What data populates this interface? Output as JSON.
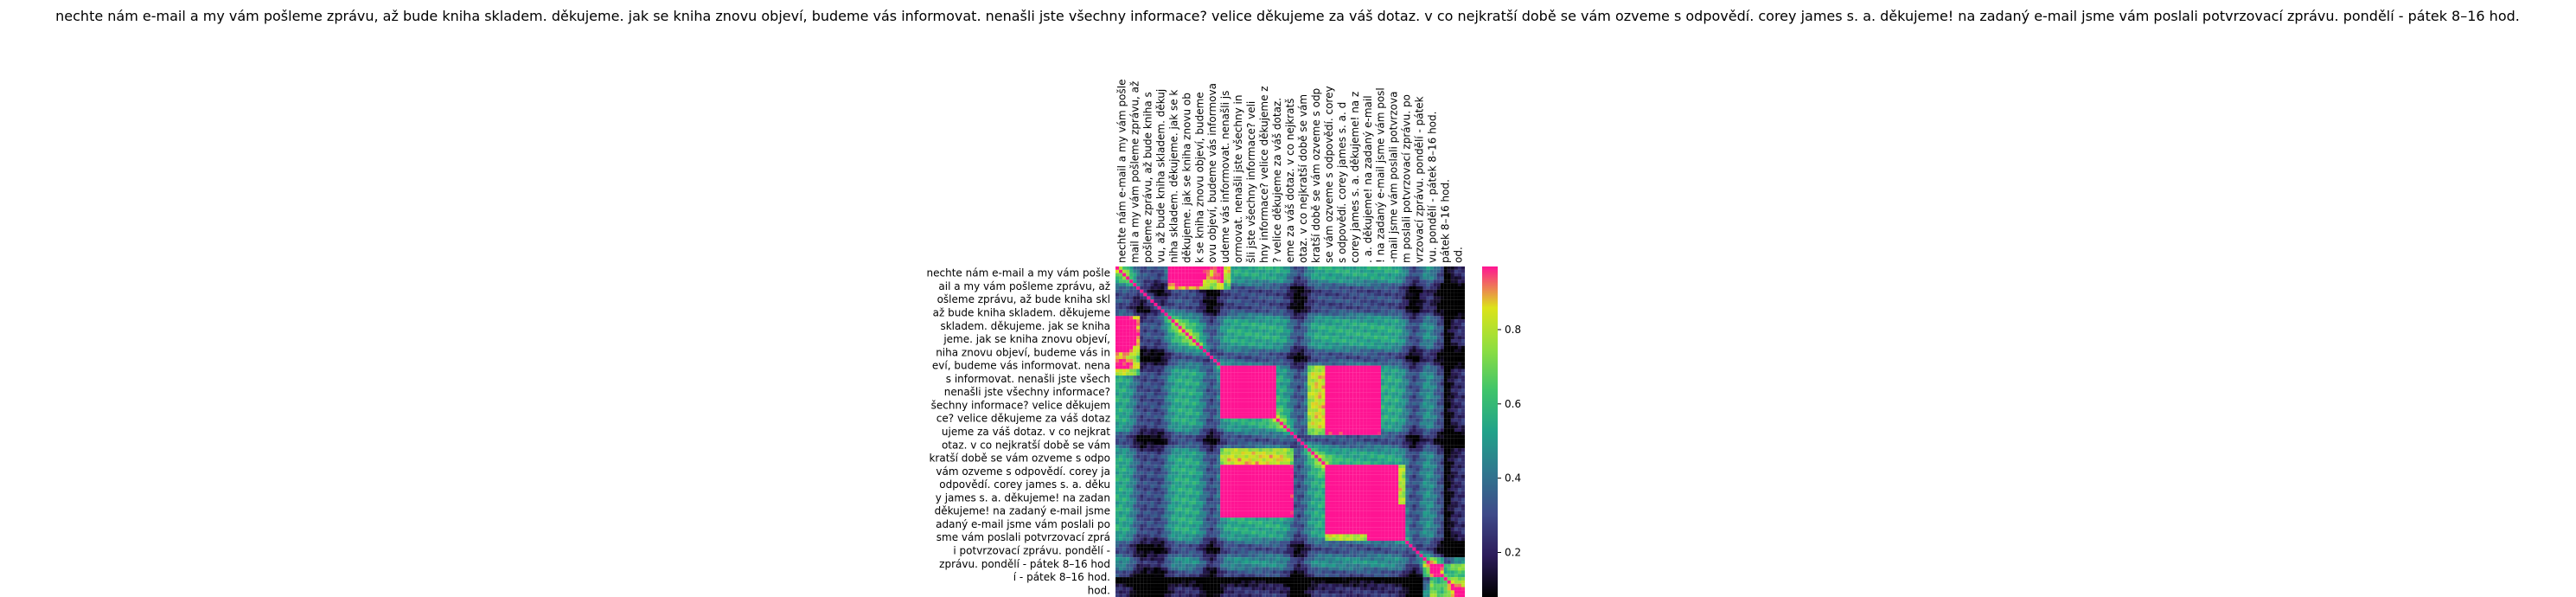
{
  "chart_data": {
    "type": "heatmap",
    "title": "nechte nám e-mail a my vám pošleme zprávu, až bude kniha skladem. děkujeme. jak se kniha znovu objeví, budeme vás informovat. nenašli jste všechny informace? velice děkujeme za váš dotaz. v co nejkratší době se vám ozveme s odpovědí. corey james s. a. děkujeme! na zadaný e-mail jsme vám poslali potvrzovací zprávu. pondělí - pátek 8–16 hod.",
    "row_labels": [
      "nechte nám e-mail a my vám pošle",
      "ail a my vám pošleme zprávu, až",
      "ošleme zprávu, až bude kniha skl",
      "až bude kniha skladem. děkujeme",
      "skladem. děkujeme. jak se kniha",
      "jeme. jak se kniha znovu objeví,",
      "niha znovu objeví, budeme vás in",
      "eví, budeme vás informovat. nena",
      "s informovat. nenašli jste všech",
      "nenašli jste všechny informace?",
      "šechny informace? velice děkujem",
      "ce? velice děkujeme za váš dotaz",
      "ujeme za váš dotaz. v co nejkrat",
      "otaz. v co nejkratší době se vám",
      "kratší době se vám ozveme s odpo",
      "vám ozveme s odpovědí. corey ja",
      "odpovědí. corey james s. a. děku",
      "y james s. a. děkujeme! na zadan",
      "děkujeme! na zadaný e-mail jsme",
      "adaný e-mail jsme vám poslali po",
      "sme vám poslali potvrzovací zprá",
      "i potvrzovací zprávu. pondělí -",
      "zprávu. pondělí - pátek 8–16 hod",
      "í - pátek 8–16 hod.",
      "hod."
    ],
    "col_labels": [
      "nechte nám e-mail a my vám pošle",
      "mail a my vám pošleme zprávu, až",
      " pošleme zprávu, až bude kniha s",
      "vu, až bude kniha skladem. děkuj",
      "niha skladem. děkujeme. jak se k",
      " děkujeme. jak se kniha znovu ob",
      "k se kniha znovu objeví, budeme",
      "ovu objeví, budeme vás informova",
      "udeme vás informovat. nenašli js",
      "ormovat. nenašli jste všechny in",
      "šli jste všechny informace? veli",
      "hny informace? velice děkujeme z",
      "? velice děkujeme za váš dotaz.",
      "eme za váš dotaz. v co nejkratš",
      "otaz. v co nejkratší době se vám",
      "kratší době se vám ozveme s odp",
      "se vám ozveme s odpovědí. corey",
      "s odpovědí. corey james s. a. d",
      "corey james s. a. děkujeme! na z",
      ". a. děkujeme! na zadaný e-mail",
      "! na zadaný e-mail jsme vám posl",
      "-mail jsme vám poslali potvrzova",
      "m poslali potvrzovací zprávu. po",
      "vrzovací zprávu. pondělí - pátek",
      "vu. pondělí - pátek 8–16 hod.",
      " pátek 8–16 hod.",
      "od."
    ],
    "colorbar_ticks": [
      0.2,
      0.4,
      0.6,
      0.8
    ],
    "vmin": 0.08,
    "vmax": 0.97,
    "colormap": [
      "#000000",
      "#2c1c5a",
      "#3e4a89",
      "#30768e",
      "#21a28a",
      "#3fc46b",
      "#8ede41",
      "#dce319",
      "#ff1493"
    ],
    "grid_size": 100
  }
}
